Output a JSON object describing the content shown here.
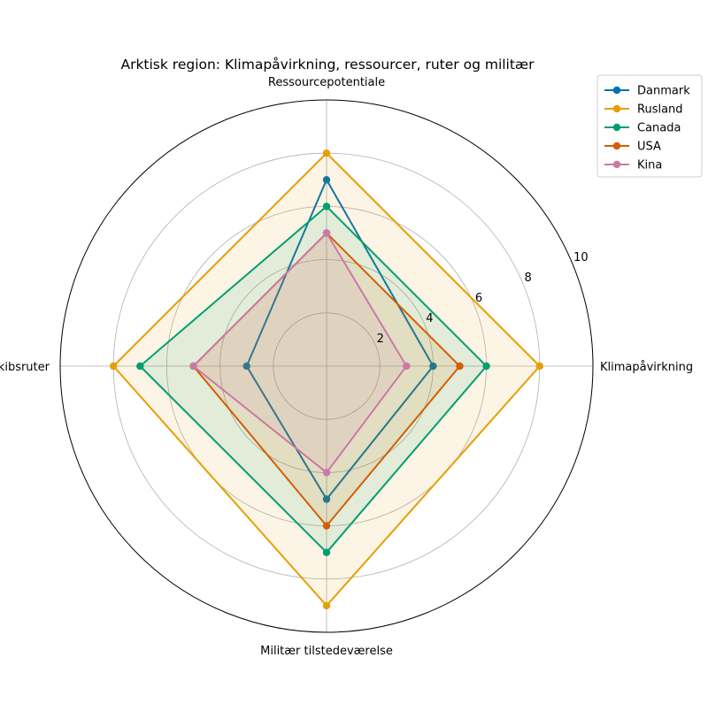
{
  "chart_data": {
    "type": "radar",
    "title": "Arktisk region: Klimapåvirkning, ressourcer, ruter og militær",
    "axes": [
      "Klimapåvirkning",
      "Ressourcepotentiale",
      "Skibsruter",
      "Militær tilstedeværelse"
    ],
    "rlim": [
      0,
      10
    ],
    "rticks": [
      2,
      4,
      6,
      8,
      10
    ],
    "grid": true,
    "legend_position": "top-right",
    "series": [
      {
        "name": "Danmark",
        "values": [
          4,
          7,
          3,
          5
        ],
        "color": "#0072B2",
        "filled": false
      },
      {
        "name": "Rusland",
        "values": [
          8,
          8,
          8,
          9
        ],
        "color": "#E69F00",
        "filled": true
      },
      {
        "name": "Canada",
        "values": [
          6,
          6,
          7,
          7
        ],
        "color": "#009E73",
        "filled": true
      },
      {
        "name": "USA",
        "values": [
          5,
          5,
          5,
          6
        ],
        "color": "#D55E00",
        "filled": true
      },
      {
        "name": "Kina",
        "values": [
          3,
          5,
          5,
          4
        ],
        "color": "#CC79A7",
        "filled": true
      }
    ]
  }
}
